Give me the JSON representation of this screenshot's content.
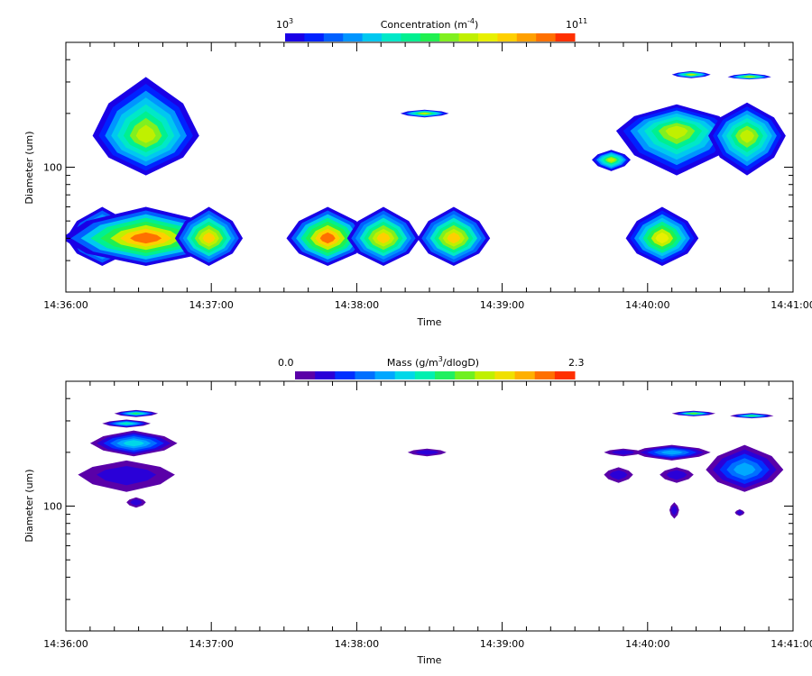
{
  "chart_data": [
    {
      "type": "heatmap",
      "title": "",
      "xlabel": "Time",
      "ylabel": "Diameter (um)",
      "x_ticks": [
        "14:36:00",
        "14:37:00",
        "14:38:00",
        "14:39:00",
        "14:40:00",
        "14:41:00"
      ],
      "y_ticks": [
        "100"
      ],
      "y_scale": "log",
      "colorbar": {
        "label_prefix": "Concentration (m",
        "label_exp": "-4",
        "label_suffix": ")",
        "min_label_base": "10",
        "min_label_exp": "3",
        "max_label_base": "10",
        "max_label_exp": "11",
        "colors": [
          "#1a00e6",
          "#0022ff",
          "#0060ff",
          "#0095ff",
          "#00c8f0",
          "#00e8c8",
          "#00f090",
          "#20f050",
          "#80f020",
          "#c0f000",
          "#e8f000",
          "#ffd000",
          "#ffa000",
          "#ff7000",
          "#ff3000"
        ]
      },
      "blobs": [
        {
          "t": "14:36:15",
          "d": 40,
          "dt": 15,
          "dd_lo": 28,
          "dd_hi": 60,
          "level": 0.78
        },
        {
          "t": "14:36:33",
          "d": 40,
          "dt": 35,
          "dd_lo": 28,
          "dd_hi": 60,
          "level": 0.92
        },
        {
          "t": "14:36:59",
          "d": 40,
          "dt": 14,
          "dd_lo": 28,
          "dd_hi": 60,
          "level": 0.78
        },
        {
          "t": "14:37:48",
          "d": 40,
          "dt": 17,
          "dd_lo": 28,
          "dd_hi": 60,
          "level": 0.9
        },
        {
          "t": "14:38:11",
          "d": 40,
          "dt": 15,
          "dd_lo": 28,
          "dd_hi": 60,
          "level": 0.78
        },
        {
          "t": "14:38:40",
          "d": 40,
          "dt": 15,
          "dd_lo": 28,
          "dd_hi": 60,
          "level": 0.78
        },
        {
          "t": "14:40:06",
          "d": 40,
          "dt": 15,
          "dd_lo": 28,
          "dd_hi": 60,
          "level": 0.72
        },
        {
          "t": "14:36:33",
          "d": 150,
          "dt": 22,
          "dd_lo": 90,
          "dd_hi": 320,
          "level": 0.62
        },
        {
          "t": "14:38:28",
          "d": 200,
          "dt": 10,
          "dd_lo": 190,
          "dd_hi": 210,
          "level": 0.62
        },
        {
          "t": "14:39:45",
          "d": 110,
          "dt": 8,
          "dd_lo": 95,
          "dd_hi": 125,
          "level": 0.62
        },
        {
          "t": "14:39:57",
          "d": 165,
          "dt": 8,
          "dd_lo": 140,
          "dd_hi": 190,
          "level": 0.62
        },
        {
          "t": "14:40:12",
          "d": 160,
          "dt": 25,
          "dd_lo": 90,
          "dd_hi": 225,
          "level": 0.62
        },
        {
          "t": "14:40:41",
          "d": 150,
          "dt": 16,
          "dd_lo": 90,
          "dd_hi": 230,
          "level": 0.62
        },
        {
          "t": "14:40:18",
          "d": 330,
          "dt": 8,
          "dd_lo": 315,
          "dd_hi": 345,
          "level": 0.62
        },
        {
          "t": "14:40:42",
          "d": 320,
          "dt": 9,
          "dd_lo": 310,
          "dd_hi": 335,
          "level": 0.62
        }
      ]
    },
    {
      "type": "heatmap",
      "title": "",
      "xlabel": "Time",
      "ylabel": "Diameter (um)",
      "x_ticks": [
        "14:36:00",
        "14:37:00",
        "14:38:00",
        "14:39:00",
        "14:40:00",
        "14:41:00"
      ],
      "y_ticks": [
        "100"
      ],
      "y_scale": "log",
      "colorbar": {
        "label_prefix": "Mass (g/m",
        "label_exp": "3",
        "label_suffix": "/dlogD)",
        "min_label": "0.0",
        "max_label": "2.3",
        "colors": [
          "#5a00a8",
          "#2a00d8",
          "#0030ff",
          "#0070ff",
          "#00a8ff",
          "#00d8e8",
          "#00f0b0",
          "#20f060",
          "#70f020",
          "#c0f000",
          "#f0e000",
          "#ffb000",
          "#ff7000",
          "#ff3000"
        ]
      },
      "blobs": [
        {
          "t": "14:36:29",
          "d": 330,
          "dt": 9,
          "dd_lo": 315,
          "dd_hi": 345,
          "level": 0.55
        },
        {
          "t": "14:36:25",
          "d": 290,
          "dt": 10,
          "dd_lo": 275,
          "dd_hi": 305,
          "level": 0.45
        },
        {
          "t": "14:36:28",
          "d": 225,
          "dt": 18,
          "dd_lo": 190,
          "dd_hi": 265,
          "level": 0.35
        },
        {
          "t": "14:36:25",
          "d": 150,
          "dt": 20,
          "dd_lo": 120,
          "dd_hi": 180,
          "level": 0.08
        },
        {
          "t": "14:36:29",
          "d": 105,
          "dt": 4,
          "dd_lo": 98,
          "dd_hi": 112,
          "level": 0.02
        },
        {
          "t": "14:38:29",
          "d": 200,
          "dt": 8,
          "dd_lo": 190,
          "dd_hi": 210,
          "level": 0.05
        },
        {
          "t": "14:39:50",
          "d": 200,
          "dt": 8,
          "dd_lo": 190,
          "dd_hi": 210,
          "level": 0.1
        },
        {
          "t": "14:40:10",
          "d": 200,
          "dt": 16,
          "dd_lo": 180,
          "dd_hi": 220,
          "level": 0.28
        },
        {
          "t": "14:39:48",
          "d": 150,
          "dt": 6,
          "dd_lo": 135,
          "dd_hi": 165,
          "level": 0.05
        },
        {
          "t": "14:40:12",
          "d": 150,
          "dt": 7,
          "dd_lo": 135,
          "dd_hi": 165,
          "level": 0.05
        },
        {
          "t": "14:40:40",
          "d": 160,
          "dt": 16,
          "dd_lo": 120,
          "dd_hi": 220,
          "level": 0.3
        },
        {
          "t": "14:40:11",
          "d": 95,
          "dt": 2,
          "dd_lo": 85,
          "dd_hi": 105,
          "level": 0.02
        },
        {
          "t": "14:40:38",
          "d": 92,
          "dt": 2,
          "dd_lo": 88,
          "dd_hi": 96,
          "level": 0.02
        },
        {
          "t": "14:40:19",
          "d": 330,
          "dt": 9,
          "dd_lo": 318,
          "dd_hi": 342,
          "level": 0.65
        },
        {
          "t": "14:40:43",
          "d": 320,
          "dt": 9,
          "dd_lo": 310,
          "dd_hi": 332,
          "level": 0.5
        }
      ]
    }
  ]
}
